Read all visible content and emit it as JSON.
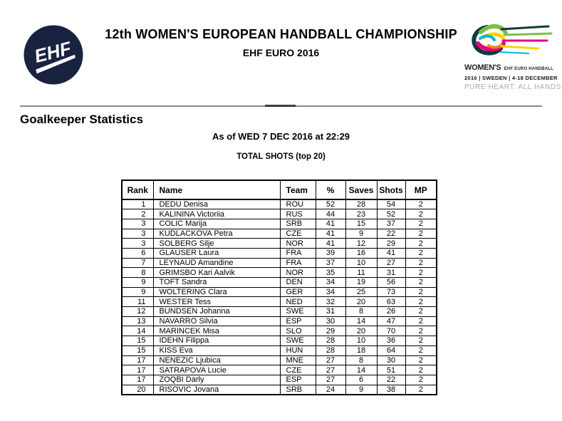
{
  "header": {
    "ehf_logo_text": "EHF",
    "title_line1": "12th WOMEN'S EUROPEAN HANDBALL CHAMPIONSHIP",
    "title_line2": "EHF EURO 2016",
    "event_logo": {
      "line1_big": "WOMEN'S",
      "line1_small": "EHF EURO HANDBALL",
      "line2": "2016 | SWEDEN | 4-18 DECEMBER",
      "line3": "PURE HEART. ALL HANDS."
    }
  },
  "page": {
    "section_title": "Goalkeeper Statistics",
    "as_of": "As of WED 7 DEC 2016  at 22:29",
    "table_title": "TOTAL SHOTS (top 20)"
  },
  "table": {
    "columns": [
      "Rank",
      "Name",
      "Team",
      "%",
      "Saves",
      "Shots",
      "MP"
    ],
    "rows": [
      [
        "1",
        "DEDU Denisa",
        "ROU",
        "52",
        "28",
        "54",
        "2"
      ],
      [
        "2",
        "KALININA Victoriia",
        "RUS",
        "44",
        "23",
        "52",
        "2"
      ],
      [
        "3",
        "COLIC Marija",
        "SRB",
        "41",
        "15",
        "37",
        "2"
      ],
      [
        "3",
        "KUDLACKOVA Petra",
        "CZE",
        "41",
        "9",
        "22",
        "2"
      ],
      [
        "3",
        "SOLBERG Silje",
        "NOR",
        "41",
        "12",
        "29",
        "2"
      ],
      [
        "6",
        "GLAUSER Laura",
        "FRA",
        "39",
        "16",
        "41",
        "2"
      ],
      [
        "7",
        "LEYNAUD Amandine",
        "FRA",
        "37",
        "10",
        "27",
        "2"
      ],
      [
        "8",
        "GRIMSBO Kari Aalvik",
        "NOR",
        "35",
        "11",
        "31",
        "2"
      ],
      [
        "9",
        "TOFT Sandra",
        "DEN",
        "34",
        "19",
        "56",
        "2"
      ],
      [
        "9",
        "WOLTERING Clara",
        "GER",
        "34",
        "25",
        "73",
        "2"
      ],
      [
        "11",
        "WESTER Tess",
        "NED",
        "32",
        "20",
        "63",
        "2"
      ],
      [
        "12",
        "BUNDSEN Johanna",
        "SWE",
        "31",
        "8",
        "26",
        "2"
      ],
      [
        "13",
        "NAVARRO Silvia",
        "ESP",
        "30",
        "14",
        "47",
        "2"
      ],
      [
        "14",
        "MARINCEK Misa",
        "SLO",
        "29",
        "20",
        "70",
        "2"
      ],
      [
        "15",
        "IDEHN Filippa",
        "SWE",
        "28",
        "10",
        "36",
        "2"
      ],
      [
        "15",
        "KISS Eva",
        "HUN",
        "28",
        "18",
        "64",
        "2"
      ],
      [
        "17",
        "NENEZIC Ljubica",
        "MNE",
        "27",
        "8",
        "30",
        "2"
      ],
      [
        "17",
        "SATRAPOVA Lucie",
        "CZE",
        "27",
        "14",
        "51",
        "2"
      ],
      [
        "17",
        "ZOQBI Darly",
        "ESP",
        "27",
        "6",
        "22",
        "2"
      ],
      [
        "20",
        "RISOVIC Jovana",
        "SRB",
        "24",
        "9",
        "38",
        "2"
      ]
    ]
  },
  "colors": {
    "logo_navy": "#19223f",
    "rule_gray": "#8a8a8a",
    "rule_dark": "#3d3d3d",
    "swirl_teal": "#0e3b3b",
    "swirl_green": "#7ac143",
    "swirl_pink": "#e6007e",
    "swirl_yellow": "#ffd500",
    "swirl_cyan": "#00b5e2",
    "swirl_orange": "#f58220"
  }
}
